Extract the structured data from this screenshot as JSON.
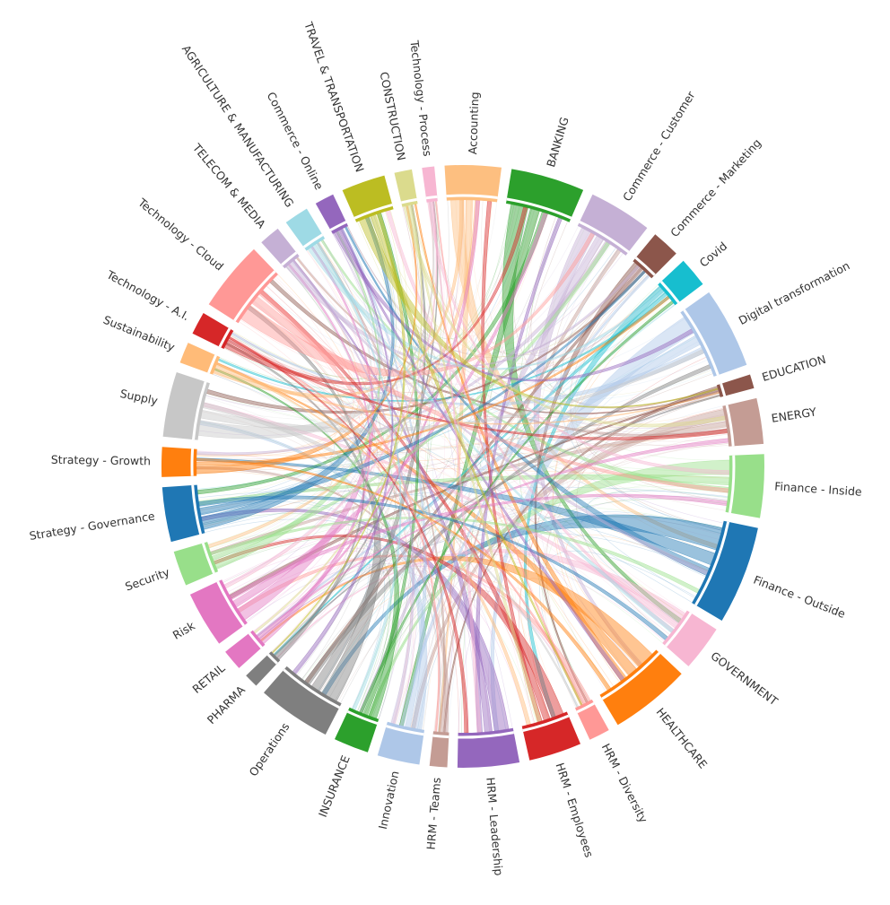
{
  "chart_data": {
    "type": "chord",
    "title": "",
    "categories": [
      {
        "label": "Accounting",
        "value": 3.2,
        "color": "#fdbf80"
      },
      {
        "label": "BANKING",
        "value": 4.2,
        "color": "#2ca02c"
      },
      {
        "label": "Commerce - Customer",
        "value": 3.6,
        "color": "#c5b0d5"
      },
      {
        "label": "Commerce - Marketing",
        "value": 1.6,
        "color": "#8c564b"
      },
      {
        "label": "Covid",
        "value": 1.7,
        "color": "#17becf"
      },
      {
        "label": "Digital transformation",
        "value": 4.6,
        "color": "#aec7e8"
      },
      {
        "label": "EDUCATION",
        "value": 0.8,
        "color": "#8c564b"
      },
      {
        "label": "ENERGY",
        "value": 2.6,
        "color": "#c49c94"
      },
      {
        "label": "Finance - Inside",
        "value": 3.6,
        "color": "#98df8a"
      },
      {
        "label": "Finance - Outside",
        "value": 5.6,
        "color": "#1f77b4"
      },
      {
        "label": "GOVERNMENT",
        "value": 2.6,
        "color": "#f7b6d2"
      },
      {
        "label": "HEALTHCARE",
        "value": 4.6,
        "color": "#ff7f0e"
      },
      {
        "label": "HRM - Diversity",
        "value": 1.2,
        "color": "#ff9896"
      },
      {
        "label": "HRM - Employees",
        "value": 3.0,
        "color": "#d62728"
      },
      {
        "label": "HRM - Leadership",
        "value": 3.5,
        "color": "#9467bd"
      },
      {
        "label": "HRM - Teams",
        "value": 1.0,
        "color": "#c49c94"
      },
      {
        "label": "Innovation",
        "value": 2.4,
        "color": "#aec7e8"
      },
      {
        "label": "INSURANCE",
        "value": 2.0,
        "color": "#2ca02c"
      },
      {
        "label": "Operations",
        "value": 4.2,
        "color": "#7f7f7f"
      },
      {
        "label": "PHARMA",
        "value": 0.8,
        "color": "#7f7f7f"
      },
      {
        "label": "RETAIL",
        "value": 1.2,
        "color": "#e377c2"
      },
      {
        "label": "Risk",
        "value": 3.2,
        "color": "#e377c2"
      },
      {
        "label": "Security",
        "value": 2.0,
        "color": "#98df8a"
      },
      {
        "label": "Strategy - Governance",
        "value": 3.1,
        "color": "#1f77b4"
      },
      {
        "label": "Strategy - Growth",
        "value": 1.7,
        "color": "#ff7f0e"
      },
      {
        "label": "Supply",
        "value": 3.7,
        "color": "#c7c7c7"
      },
      {
        "label": "Sustainability",
        "value": 1.2,
        "color": "#ffbb78"
      },
      {
        "label": "Technology - A.I.",
        "value": 1.3,
        "color": "#d62728"
      },
      {
        "label": "Technology - Cloud",
        "value": 4.0,
        "color": "#ff9896"
      },
      {
        "label": "TELECOM & MEDIA",
        "value": 1.2,
        "color": "#c5b0d5"
      },
      {
        "label": "AGRICULTURE & MANUFACTURING",
        "value": 1.4,
        "color": "#9edae5"
      },
      {
        "label": "Commerce - Online",
        "value": 1.1,
        "color": "#9467bd"
      },
      {
        "label": "TRAVEL & TRANSPORTATION",
        "value": 2.5,
        "color": "#bcbd22"
      },
      {
        "label": "CONSTRUCTION",
        "value": 1.0,
        "color": "#dbdb8d"
      },
      {
        "label": "Technology - Process",
        "value": 0.7,
        "color": "#f7b6d2"
      }
    ]
  }
}
